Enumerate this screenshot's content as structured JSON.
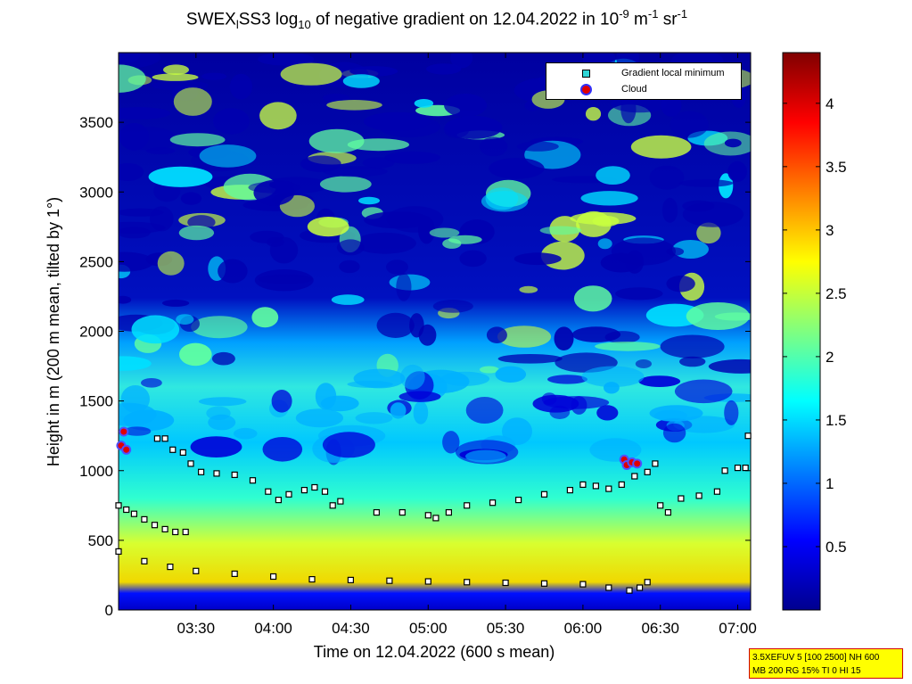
{
  "title": {
    "prefix": "SWEX",
    "sub1": "l",
    "mid": "SS3 log",
    "sub2": "10",
    "text": " of negative gradient on 12.04.2022 in 10",
    "sup1": "-9",
    "unit1": " m",
    "sup2": "-1",
    "unit2": " sr",
    "sup3": "-1"
  },
  "legend": {
    "items": [
      {
        "label": "Gradient local minimum",
        "marker": "cyan-square"
      },
      {
        "label": "Cloud",
        "marker": "red-dot"
      }
    ]
  },
  "infobox": {
    "line1": "3.5XEFUV 5 [100 2500] NH 600",
    "line2": "MB 200 RG 15% TI 0 HI 15"
  },
  "chart_data": {
    "type": "heatmap",
    "xlabel": "Time on 12.04.2022 (600 s mean)",
    "ylabel": "Height in m (200 m mean, tilted by 1°)",
    "xlim": [
      "03:00",
      "07:05"
    ],
    "ylim": [
      0,
      4000
    ],
    "x_ticks": [
      "03:30",
      "04:00",
      "04:30",
      "05:00",
      "05:30",
      "06:00",
      "06:30",
      "07:00"
    ],
    "y_ticks": [
      "0",
      "500",
      "1000",
      "1500",
      "2000",
      "2500",
      "3000",
      "3500"
    ],
    "colorbar": {
      "colormap": "jet",
      "range": [
        0,
        4.4
      ],
      "ticks": [
        "0.5",
        "1",
        "1.5",
        "2",
        "2.5",
        "3",
        "3.5",
        "4"
      ]
    },
    "series": [
      {
        "name": "Gradient local minimum",
        "layer": "surface",
        "points": [
          [
            "03:00",
            420
          ],
          [
            "03:10",
            350
          ],
          [
            "03:20",
            310
          ],
          [
            "03:30",
            280
          ],
          [
            "03:45",
            260
          ],
          [
            "04:00",
            240
          ],
          [
            "04:15",
            220
          ],
          [
            "04:30",
            215
          ],
          [
            "04:45",
            210
          ],
          [
            "05:00",
            205
          ],
          [
            "05:15",
            200
          ],
          [
            "05:30",
            195
          ],
          [
            "05:45",
            190
          ],
          [
            "06:00",
            185
          ],
          [
            "06:10",
            160
          ],
          [
            "06:18",
            140
          ],
          [
            "06:22",
            160
          ],
          [
            "06:25",
            200
          ]
        ]
      },
      {
        "name": "Gradient local minimum",
        "layer": "low",
        "points": [
          [
            "03:00",
            750
          ],
          [
            "03:03",
            720
          ],
          [
            "03:06",
            690
          ],
          [
            "03:10",
            650
          ],
          [
            "03:14",
            610
          ],
          [
            "03:18",
            580
          ],
          [
            "03:22",
            560
          ],
          [
            "03:26",
            560
          ]
        ]
      },
      {
        "name": "Gradient local minimum",
        "layer": "mid-early",
        "points": [
          [
            "03:15",
            1230
          ],
          [
            "03:18",
            1230
          ],
          [
            "03:21",
            1150
          ],
          [
            "03:25",
            1130
          ],
          [
            "03:28",
            1050
          ],
          [
            "03:32",
            990
          ],
          [
            "03:38",
            980
          ],
          [
            "03:45",
            970
          ],
          [
            "03:52",
            930
          ],
          [
            "03:58",
            850
          ],
          [
            "04:02",
            790
          ],
          [
            "04:06",
            830
          ],
          [
            "04:12",
            860
          ],
          [
            "04:16",
            880
          ],
          [
            "04:20",
            850
          ],
          [
            "04:23",
            750
          ],
          [
            "04:26",
            780
          ]
        ]
      },
      {
        "name": "Gradient local minimum",
        "layer": "mid-late",
        "points": [
          [
            "04:40",
            700
          ],
          [
            "04:50",
            700
          ],
          [
            "05:00",
            680
          ],
          [
            "05:03",
            660
          ],
          [
            "05:08",
            700
          ],
          [
            "05:15",
            750
          ],
          [
            "05:25",
            770
          ],
          [
            "05:35",
            790
          ],
          [
            "05:45",
            830
          ],
          [
            "05:55",
            860
          ],
          [
            "06:00",
            900
          ],
          [
            "06:05",
            890
          ],
          [
            "06:10",
            870
          ],
          [
            "06:15",
            900
          ],
          [
            "06:20",
            960
          ],
          [
            "06:25",
            990
          ],
          [
            "06:28",
            1050
          ],
          [
            "06:30",
            750
          ],
          [
            "06:33",
            700
          ],
          [
            "06:38",
            800
          ],
          [
            "06:45",
            820
          ],
          [
            "06:52",
            850
          ],
          [
            "06:55",
            1000
          ],
          [
            "07:00",
            1020
          ],
          [
            "07:03",
            1020
          ],
          [
            "07:04",
            1250
          ]
        ]
      },
      {
        "name": "Cloud",
        "points": [
          [
            "03:01",
            1180
          ],
          [
            "03:03",
            1150
          ],
          [
            "03:02",
            1280
          ],
          [
            "06:16",
            1080
          ],
          [
            "06:17",
            1040
          ],
          [
            "06:19",
            1060
          ],
          [
            "06:21",
            1050
          ]
        ]
      }
    ]
  }
}
